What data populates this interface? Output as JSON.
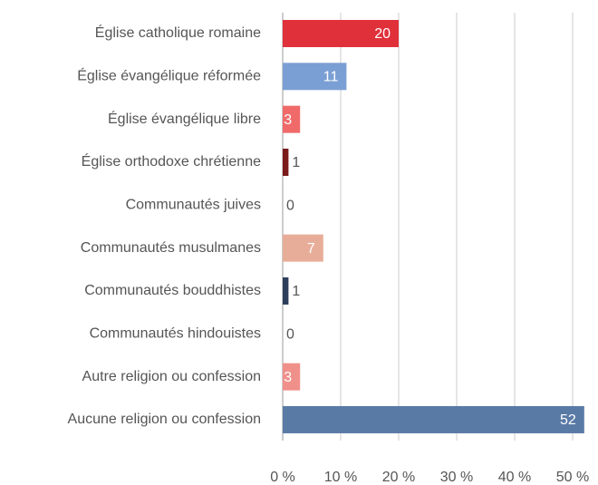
{
  "chart_data": {
    "type": "bar",
    "orientation": "horizontal",
    "categories": [
      "Église catholique romaine",
      "Église évangélique réformée",
      "Église évangélique libre",
      "Église orthodoxe chrétienne",
      "Communautés juives",
      "Communautés musulmanes",
      "Communautés bouddhistes",
      "Communautés hindouistes",
      "Autre religion ou confession",
      "Aucune religion ou confession"
    ],
    "values": [
      20,
      11,
      3,
      1,
      0,
      7,
      1,
      0,
      3,
      52
    ],
    "colors": [
      "#e0313a",
      "#7a9fd4",
      "#f06a6a",
      "#7a1a1a",
      "#b0b0b0",
      "#e8ad98",
      "#2d3f5c",
      "#b0b0b0",
      "#f0908a",
      "#5a7aa6"
    ],
    "xlim": [
      0,
      50
    ],
    "xticks": [
      {
        "value": 0,
        "label": "0 %"
      },
      {
        "value": 10,
        "label": "10 %"
      },
      {
        "value": 20,
        "label": "20 %"
      },
      {
        "value": 30,
        "label": "30 %"
      },
      {
        "value": 40,
        "label": "40 %"
      },
      {
        "value": 50,
        "label": "50 %"
      }
    ],
    "grid": true
  }
}
